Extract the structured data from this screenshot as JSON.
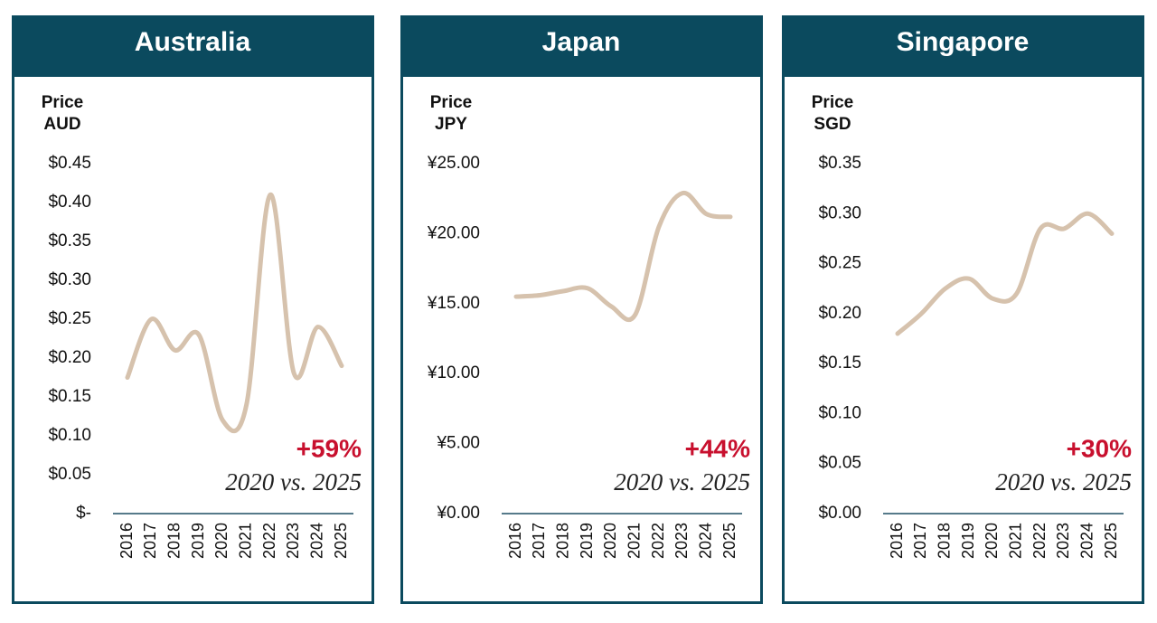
{
  "chart_data": [
    {
      "type": "line",
      "title": "Australia",
      "y_label": [
        "Price",
        "AUD"
      ],
      "categories": [
        "2016",
        "2017",
        "2018",
        "2019",
        "2020",
        "2021",
        "2022",
        "2023",
        "2024",
        "2025"
      ],
      "series": [
        {
          "color": "#d6c2ad",
          "values": [
            0.175,
            0.25,
            0.21,
            0.23,
            0.12,
            0.14,
            0.41,
            0.18,
            0.24,
            0.19
          ]
        }
      ],
      "ylim": [
        0,
        0.45
      ],
      "yticks": [
        {
          "value": 0,
          "label": "$-"
        },
        {
          "value": 0.05,
          "label": "$0.05"
        },
        {
          "value": 0.1,
          "label": "$0.10"
        },
        {
          "value": 0.15,
          "label": "$0.15"
        },
        {
          "value": 0.2,
          "label": "$0.20"
        },
        {
          "value": 0.25,
          "label": "$0.25"
        },
        {
          "value": 0.3,
          "label": "$0.30"
        },
        {
          "value": 0.35,
          "label": "$0.35"
        },
        {
          "value": 0.4,
          "label": "$0.40"
        },
        {
          "value": 0.45,
          "label": "$0.45"
        }
      ],
      "annotation": {
        "change": "+59%",
        "comparison": "2020 vs. 2025"
      }
    },
    {
      "type": "line",
      "title": "Japan",
      "y_label": [
        "Price",
        "JPY"
      ],
      "categories": [
        "2016",
        "2017",
        "2018",
        "2019",
        "2020",
        "2021",
        "2022",
        "2023",
        "2024",
        "2025"
      ],
      "series": [
        {
          "color": "#d6c2ad",
          "values": [
            15.5,
            15.6,
            15.9,
            16.1,
            14.8,
            14.2,
            20.5,
            22.9,
            21.4,
            21.2
          ]
        }
      ],
      "ylim": [
        0,
        25
      ],
      "yticks": [
        {
          "value": 0,
          "label": "¥0.00"
        },
        {
          "value": 5,
          "label": "¥5.00"
        },
        {
          "value": 10,
          "label": "¥10.00"
        },
        {
          "value": 15,
          "label": "¥15.00"
        },
        {
          "value": 20,
          "label": "¥20.00"
        },
        {
          "value": 25,
          "label": "¥25.00"
        }
      ],
      "annotation": {
        "change": "+44%",
        "comparison": "2020 vs. 2025"
      }
    },
    {
      "type": "line",
      "title": "Singapore",
      "y_label": [
        "Price",
        "SGD"
      ],
      "categories": [
        "2016",
        "2017",
        "2018",
        "2019",
        "2020",
        "2021",
        "2022",
        "2023",
        "2024",
        "2025"
      ],
      "series": [
        {
          "color": "#d6c2ad",
          "values": [
            0.18,
            0.2,
            0.225,
            0.235,
            0.215,
            0.22,
            0.285,
            0.285,
            0.3,
            0.28
          ]
        }
      ],
      "ylim": [
        0,
        0.35
      ],
      "yticks": [
        {
          "value": 0,
          "label": "$0.00"
        },
        {
          "value": 0.05,
          "label": "$0.05"
        },
        {
          "value": 0.1,
          "label": "$0.10"
        },
        {
          "value": 0.15,
          "label": "$0.15"
        },
        {
          "value": 0.2,
          "label": "$0.20"
        },
        {
          "value": 0.25,
          "label": "$0.25"
        },
        {
          "value": 0.3,
          "label": "$0.30"
        },
        {
          "value": 0.35,
          "label": "$0.35"
        }
      ],
      "annotation": {
        "change": "+30%",
        "comparison": "2020 vs. 2025"
      }
    }
  ]
}
